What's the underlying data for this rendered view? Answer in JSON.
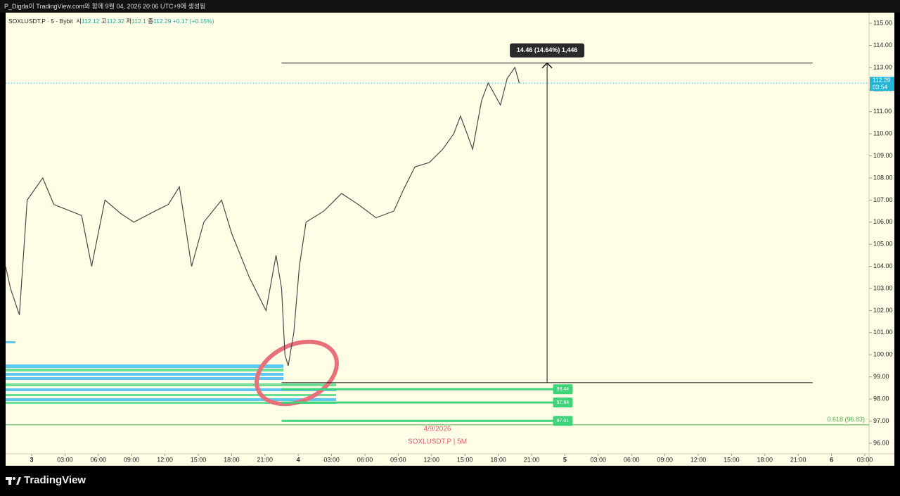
{
  "topbar": "P_Digda이 TradingView.com와 함께 9월 04, 2026 20:06 UTC+9에 생성됨",
  "footer": "TradingView",
  "chart_data": {
    "type": "line",
    "header": {
      "symbol": "SOXLUSDT.P · 5 · Bybit",
      "open_label": "시",
      "open": 112.12,
      "high_label": "고",
      "high": 112.32,
      "low_label": "저",
      "low": 112.1,
      "close_label": "종",
      "close": 112.29,
      "change": "+0.17 (+0.15%)"
    },
    "x": [
      -2.34,
      -1.9,
      -1.1,
      -0.4,
      1.0,
      2.0,
      3.5,
      4.5,
      5.4,
      6.6,
      8.0,
      9.2,
      11.1,
      12.3,
      13.3,
      14.4,
      15.5,
      17.1,
      18.0,
      19.6,
      21.1,
      22.0,
      22.5,
      22.8,
      23.1,
      23.6,
      24.1,
      24.7,
      26.3,
      27.9,
      29.4,
      31.0,
      32.6,
      33.5,
      34.5,
      35.8,
      37.0,
      38.0,
      38.6,
      39.2,
      39.7,
      40.5,
      41.1,
      42.2,
      42.8,
      43.5,
      43.9
    ],
    "series": [
      {
        "name": "SOXLUSDT.P",
        "color": "#4a4a4a",
        "values": [
          104.0,
          103.0,
          101.8,
          107.0,
          108.0,
          106.8,
          106.5,
          106.3,
          104.0,
          107.0,
          106.4,
          106.0,
          106.5,
          106.8,
          107.6,
          104.0,
          106.0,
          107.0,
          105.5,
          103.5,
          102.0,
          104.5,
          103.0,
          100.0,
          99.5,
          101.0,
          104.0,
          106.0,
          106.5,
          107.3,
          106.8,
          106.2,
          106.5,
          107.5,
          108.5,
          108.7,
          109.3,
          110.0,
          110.8,
          110.0,
          109.3,
          111.5,
          112.3,
          111.3,
          112.5,
          113.0,
          112.29
        ]
      }
    ],
    "xlim": [
      -2.34,
      75.38
    ],
    "ylim": [
      95.52,
      115.48
    ],
    "yticks": [
      {
        "value": 96,
        "label": "96.00"
      },
      {
        "value": 97,
        "label": "97.00"
      },
      {
        "value": 98,
        "label": "98.00"
      },
      {
        "value": 99,
        "label": "99.00"
      },
      {
        "value": 100,
        "label": "100.00"
      },
      {
        "value": 101,
        "label": "101.00"
      },
      {
        "value": 102,
        "label": "102.00"
      },
      {
        "value": 103,
        "label": "103.00"
      },
      {
        "value": 104,
        "label": "104.00"
      },
      {
        "value": 105,
        "label": "105.00"
      },
      {
        "value": 106,
        "label": "106.00"
      },
      {
        "value": 107,
        "label": "107.00"
      },
      {
        "value": 108,
        "label": "108.00"
      },
      {
        "value": 109,
        "label": "109.00"
      },
      {
        "value": 110,
        "label": "110.00"
      },
      {
        "value": 111,
        "label": "111.00"
      },
      {
        "value": 112,
        "label": "112.00"
      },
      {
        "value": 113,
        "label": "113.00"
      },
      {
        "value": 114,
        "label": "114.00"
      },
      {
        "value": 115,
        "label": "115.00"
      }
    ],
    "xticks": [
      {
        "value": 0,
        "label": "3"
      },
      {
        "value": 3,
        "label": "03:00"
      },
      {
        "value": 6,
        "label": "06:00"
      },
      {
        "value": 9,
        "label": "09:00"
      },
      {
        "value": 12,
        "label": "12:00"
      },
      {
        "value": 15,
        "label": "15:00"
      },
      {
        "value": 18,
        "label": "18:00"
      },
      {
        "value": 21,
        "label": "21:00"
      },
      {
        "value": 24,
        "label": "4"
      },
      {
        "value": 27,
        "label": "03:00"
      },
      {
        "value": 30,
        "label": "06:00"
      },
      {
        "value": 33,
        "label": "09:00"
      },
      {
        "value": 36,
        "label": "12:00"
      },
      {
        "value": 39,
        "label": "15:00"
      },
      {
        "value": 42,
        "label": "18:00"
      },
      {
        "value": 45,
        "label": "21:00"
      },
      {
        "value": 48,
        "label": "5"
      },
      {
        "value": 51,
        "label": "03:00"
      },
      {
        "value": 54,
        "label": "06:00"
      },
      {
        "value": 57,
        "label": "09:00"
      },
      {
        "value": 60,
        "label": "12:00"
      },
      {
        "value": 63,
        "label": "15:00"
      },
      {
        "value": 66,
        "label": "18:00"
      },
      {
        "value": 69,
        "label": "21:00"
      },
      {
        "value": 72,
        "label": "6"
      },
      {
        "value": 75,
        "label": "03:00"
      }
    ],
    "price_marker": {
      "value": 112.29,
      "countdown": "03:54",
      "color": "#22b5d6"
    },
    "measure": {
      "label": "14.46 (14.64%) 1,446",
      "from": 98.74,
      "to": 113.2,
      "x_start": 22.5,
      "x_end": 70.3,
      "arrow_x": 46.4
    },
    "levels": {
      "color": "#3dd47a",
      "x_start": 22.5,
      "x_end": 48.7,
      "values": [
        98.44,
        97.84,
        97.01
      ]
    },
    "fib": {
      "label": "0.618 (96.83)",
      "value": 96.83,
      "color": "#4caf50"
    },
    "watermark_date": "4/9/2026",
    "watermark_symbol": "SOXLUSDT.P | 5M"
  }
}
